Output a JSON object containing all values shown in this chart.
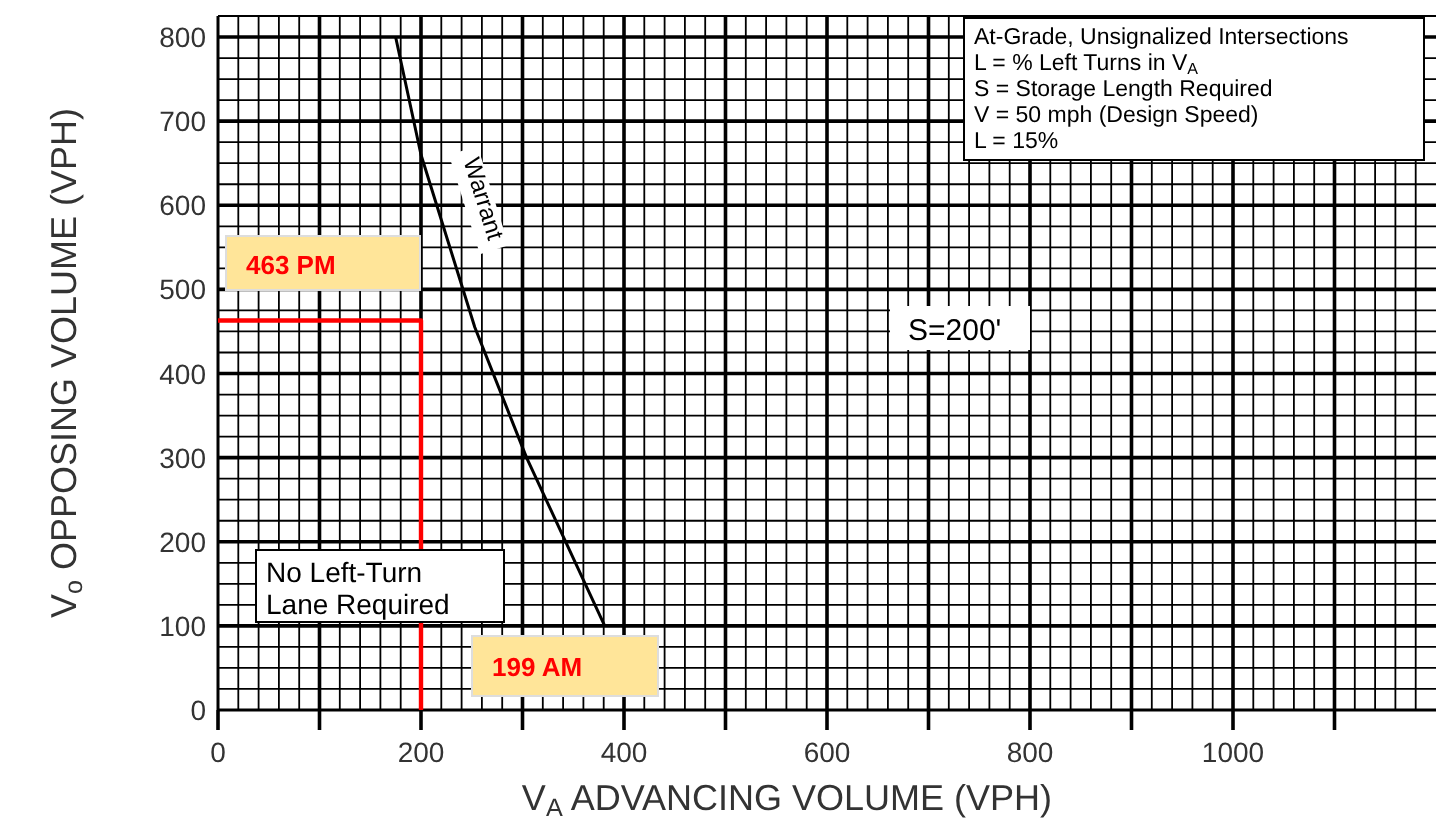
{
  "chart_data": {
    "type": "line",
    "xlabel": "V$_{A}$ ADVANCING VOLUME (VPH)",
    "ylabel": "V$_{o}$ OPPOSING VOLUME (VPH)",
    "xlim": [
      0,
      1200
    ],
    "ylim": [
      0,
      825
    ],
    "xticks": [
      0,
      {
        "value": 100,
        "label": null
      },
      200,
      {
        "value": 300,
        "label": null
      },
      400,
      {
        "value": 500,
        "label": null
      },
      600,
      {
        "value": 700,
        "label": null
      },
      800,
      {
        "value": 900,
        "label": null
      },
      1000,
      {
        "value": 1100,
        "label": null
      }
    ],
    "yticks": [
      0,
      100,
      200,
      300,
      400,
      500,
      600,
      700,
      800
    ],
    "grid": true,
    "marker": "none",
    "line_style": "solid",
    "series": [
      {
        "name": "Warrant",
        "color": "#000000",
        "x": [
          175,
          200,
          253,
          304,
          381
        ],
        "values": [
          800,
          660,
          455,
          300,
          100
        ]
      },
      {
        "color": "#ff0000",
        "x": [
          0,
          200,
          200
        ],
        "values": [
          463,
          463,
          0
        ]
      }
    ],
    "annotations": [
      "At-Grade, Unsignalized Intersections",
      "L = % Left Turns in V$_{A}$",
      "S = Storage Length Required",
      "V = 50 mph (Design Speed)",
      "L = 15%",
      "S=200'",
      "No Left-Turn",
      "Lane Required",
      "463 PM",
      "199 AM"
    ]
  }
}
